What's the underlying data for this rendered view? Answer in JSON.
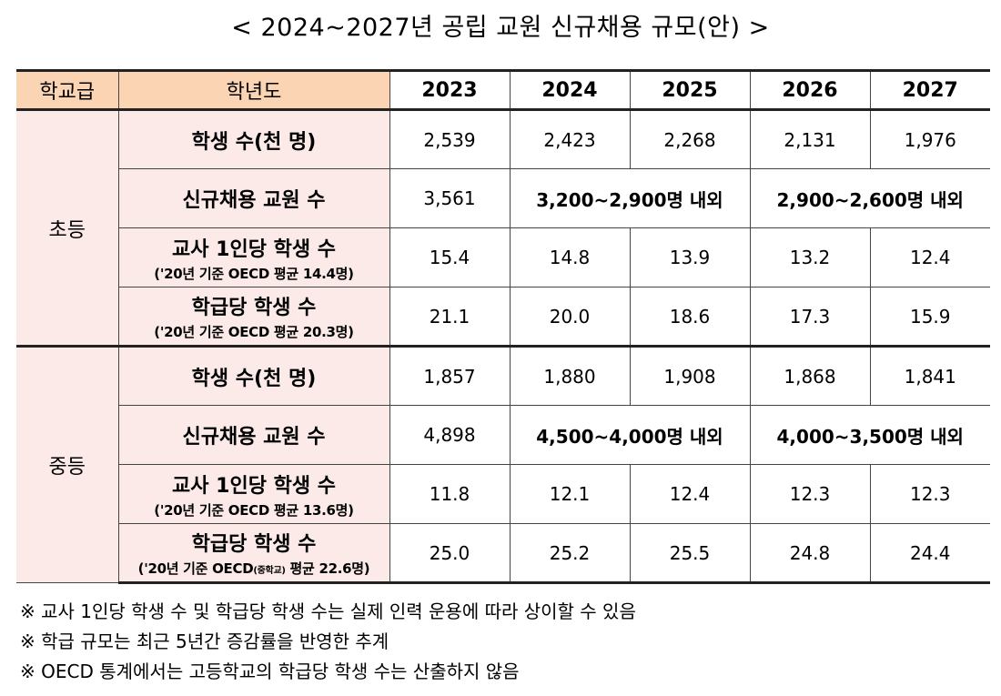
{
  "title": "< 2024~2027년 공립 교원 신규채용 규모(안) >",
  "table": {
    "headers": {
      "level": "학교급",
      "year_label": "학년도",
      "years": [
        "2023",
        "2024",
        "2025",
        "2026",
        "2027"
      ]
    },
    "elementary": {
      "level": "초등",
      "students": {
        "label": "학생 수(천 명)",
        "values": [
          "2,539",
          "2,423",
          "2,268",
          "2,131",
          "1,976"
        ]
      },
      "hires": {
        "label": "신규채용 교원 수",
        "v2023": "3,561",
        "range_24_25": "3,200~2,900명 내외",
        "range_26_27": "2,900~2,600명 내외"
      },
      "per_teacher": {
        "label": "교사 1인당 학생 수",
        "sub": "('20년 기준 OECD 평균 14.4명)",
        "values": [
          "15.4",
          "14.8",
          "13.9",
          "13.2",
          "12.4"
        ]
      },
      "per_class": {
        "label": "학급당 학생 수",
        "sub": "('20년 기준 OECD 평균 20.3명)",
        "values": [
          "21.1",
          "20.0",
          "18.6",
          "17.3",
          "15.9"
        ]
      }
    },
    "secondary": {
      "level": "중등",
      "students": {
        "label": "학생 수(천 명)",
        "values": [
          "1,857",
          "1,880",
          "1,908",
          "1,868",
          "1,841"
        ]
      },
      "hires": {
        "label": "신규채용 교원 수",
        "v2023": "4,898",
        "range_24_25": "4,500~4,000명 내외",
        "range_26_27": "4,000~3,500명 내외"
      },
      "per_teacher": {
        "label": "교사 1인당 학생 수",
        "sub": "('20년 기준 OECD 평균 13.6명)",
        "values": [
          "11.8",
          "12.1",
          "12.4",
          "12.3",
          "12.3"
        ]
      },
      "per_class": {
        "label": "학급당 학생 수",
        "sub_a": "('20년 기준 OECD",
        "sub_b": "(중학교)",
        "sub_c": " 평균 22.6명)",
        "values": [
          "25.0",
          "25.2",
          "25.5",
          "24.8",
          "24.4"
        ]
      }
    }
  },
  "notes": [
    "※ 교사 1인당 학생 수 및 학급당 학생 수는 실제 인력 운용에 따라 상이할 수 있음",
    "※ 학급 규모는 최근 5년간 증감률을 반영한 추계",
    "※ OECD 통계에서는 고등학교의 학급당 학생 수는 산출하지 않음"
  ]
}
